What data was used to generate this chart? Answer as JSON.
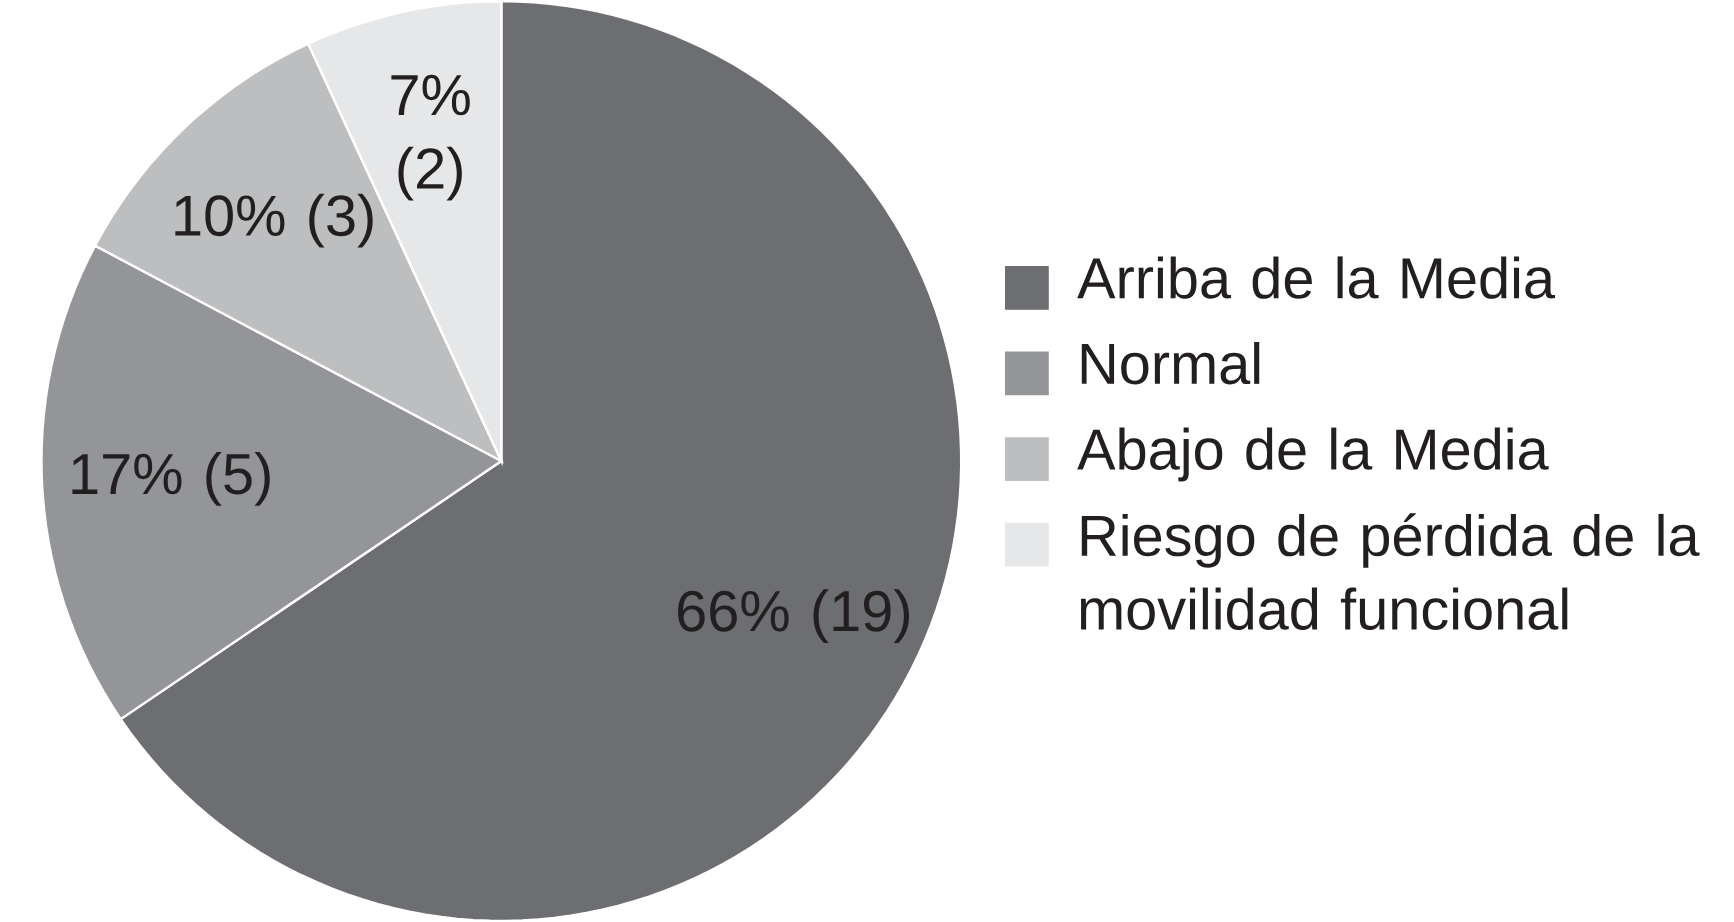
{
  "chart_data": {
    "type": "pie",
    "categories": [
      "Arriba de la Media",
      "Normal",
      "Abajo de la Media",
      "Riesgo de pérdida de la movilidad funcional"
    ],
    "values": [
      19,
      5,
      3,
      2
    ],
    "colors": [
      "#6d6e71",
      "#939598",
      "#bcbec0",
      "#e6e7e8"
    ],
    "value_labels": [
      "66% (19)",
      "17% (5)",
      "10% (3)",
      "7% (2)"
    ],
    "legend": "right"
  }
}
